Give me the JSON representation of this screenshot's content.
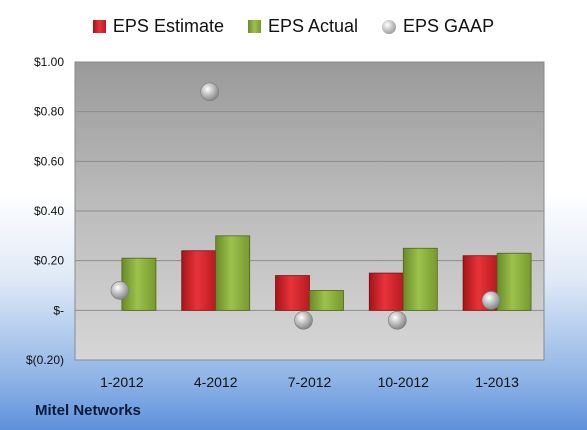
{
  "company": "Mitel Networks",
  "colors": {
    "estimate": "#e2252b",
    "actual": "#8cb23c",
    "gaap": "#b8b8b8"
  },
  "chart_data": {
    "type": "bar",
    "categories": [
      "1-2012",
      "4-2012",
      "7-2012",
      "10-2012",
      "1-2013"
    ],
    "series": [
      {
        "name": "EPS Estimate",
        "kind": "bar",
        "values": [
          null,
          0.24,
          0.14,
          0.15,
          0.22
        ]
      },
      {
        "name": "EPS Actual",
        "kind": "bar",
        "values": [
          0.21,
          0.3,
          0.08,
          0.25,
          0.23
        ]
      },
      {
        "name": "EPS GAAP",
        "kind": "scatter",
        "values": [
          0.08,
          0.88,
          -0.04,
          -0.04,
          0.04
        ]
      }
    ],
    "ylim": [
      -0.2,
      1.0
    ],
    "yticks": [
      1.0,
      0.8,
      0.6,
      0.4,
      0.2,
      0,
      -0.2
    ],
    "ytick_labels": [
      "$1.00",
      "$0.80",
      "$0.60",
      "$0.40",
      "$0.20",
      "$-",
      "$(0.20)"
    ],
    "legend_position": "top",
    "grid": true
  }
}
